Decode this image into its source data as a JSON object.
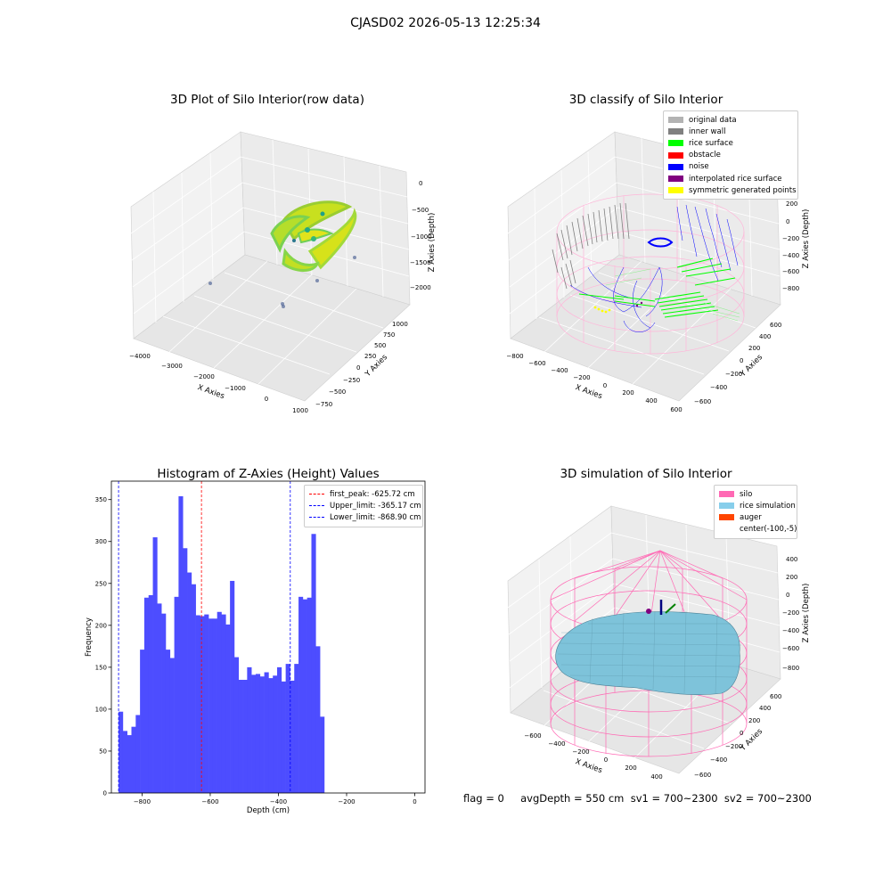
{
  "suptitle": "CJASD02 2026-05-13 12:25:34",
  "panels": {
    "raw": {
      "title": "3D Plot of Silo Interior(row data)",
      "xlabel": "X Axies",
      "ylabel": "Y Axies",
      "zlabel": "Z Axies (Depth)",
      "xticks": [
        "−4000",
        "−3000",
        "−2000",
        "−1000",
        "0",
        "1000"
      ],
      "yticks": [
        "−750",
        "−500",
        "−250",
        "0",
        "250",
        "500",
        "750",
        "1000"
      ],
      "zticks": [
        "0",
        "−500",
        "−1000",
        "−1500",
        "−2000"
      ]
    },
    "classify": {
      "title": "3D classify of Silo Interior",
      "xlabel": "X Axies",
      "ylabel": "Y Axies",
      "zlabel": "Z Axies (Depth)",
      "xticks": [
        "−800",
        "−600",
        "−400",
        "−200",
        "0",
        "200",
        "400",
        "600"
      ],
      "yticks": [
        "−600",
        "−400",
        "−200",
        "0",
        "200",
        "400",
        "600"
      ],
      "zticks": [
        "200",
        "0",
        "−200",
        "−400",
        "−600",
        "−800"
      ],
      "legend": [
        {
          "label": "original data",
          "color": "#b3b3b3"
        },
        {
          "label": "inner wall",
          "color": "#808080"
        },
        {
          "label": "rice surface",
          "color": "#00ff00"
        },
        {
          "label": "obstacle",
          "color": "#ff0000"
        },
        {
          "label": "noise",
          "color": "#0000ff"
        },
        {
          "label": "interpolated rice surface",
          "color": "#800080"
        },
        {
          "label": "symmetric generated points",
          "color": "#ffff00"
        }
      ]
    },
    "simulation": {
      "title": "3D simulation of Silo Interior",
      "xlabel": "X Axies",
      "ylabel": "Y Axies",
      "zlabel": "Z Axies (Depth)",
      "xticks": [
        "−600",
        "−400",
        "−200",
        "0",
        "200",
        "400"
      ],
      "yticks": [
        "−600",
        "−400",
        "−200",
        "0",
        "200",
        "400",
        "600"
      ],
      "zticks": [
        "400",
        "200",
        "0",
        "−200",
        "−400",
        "−600",
        "−800"
      ],
      "legend": [
        {
          "label": "silo",
          "color": "#ff69b4"
        },
        {
          "label": "rice simulation",
          "color": "#87ceeb"
        },
        {
          "label": "auger",
          "color": "#ff4500"
        },
        {
          "label": "center(-100,-5)",
          "color": ""
        }
      ]
    }
  },
  "footer": "flag = 0     avgDepth = 550 cm  sv1 = 700~2300  sv2 = 700~2300",
  "chart_data": {
    "type": "bar",
    "title": "Histogram of Z-Axies (Height) Values",
    "xlabel": "Depth (cm)",
    "ylabel": "Frequency",
    "xlim": [
      -890,
      30
    ],
    "ylim": [
      0,
      372
    ],
    "xticks": [
      -800,
      -600,
      -400,
      -200,
      0
    ],
    "xtick_labels": [
      "−800",
      "−600",
      "−400",
      "−200",
      "0"
    ],
    "yticks": [
      0,
      50,
      100,
      150,
      200,
      250,
      300,
      350
    ],
    "bin_start": -868.9,
    "bin_width": 12.57,
    "values": [
      97,
      74,
      69,
      79,
      93,
      171,
      233,
      236,
      305,
      226,
      214,
      171,
      161,
      234,
      354,
      292,
      263,
      249,
      212,
      211,
      213,
      208,
      208,
      216,
      213,
      201,
      253,
      162,
      135,
      135,
      150,
      141,
      142,
      139,
      144,
      137,
      140,
      150,
      133,
      154,
      134,
      154,
      234,
      231,
      233,
      309,
      175,
      91
    ],
    "bar_color": "#4d4dff",
    "vlines": [
      {
        "label": "first_peak: -625.72 cm",
        "x": -625.72,
        "color": "#ff0000"
      },
      {
        "label": "Upper_limit: -365.17 cm",
        "x": -365.17,
        "color": "#0000ff"
      },
      {
        "label": "Lower_limit: -868.90 cm",
        "x": -868.9,
        "color": "#0000ff"
      }
    ]
  }
}
